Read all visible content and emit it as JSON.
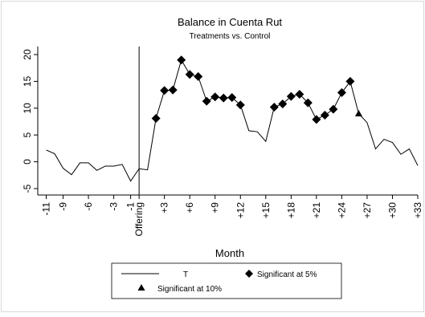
{
  "chart_data": {
    "type": "line",
    "title": "Balance in Cuenta Rut",
    "subtitle": "Treatments vs. Control",
    "xlabel": "Month",
    "ylabel": "",
    "xlim": [
      -12,
      33
    ],
    "ylim": [
      -5,
      20
    ],
    "x_ticks": [
      {
        "value": -11,
        "label": "-11"
      },
      {
        "value": -9,
        "label": "-9"
      },
      {
        "value": -6,
        "label": "-6"
      },
      {
        "value": -3,
        "label": "-3"
      },
      {
        "value": -1,
        "label": "-1"
      },
      {
        "value": 0,
        "label": "Offering"
      },
      {
        "value": 3,
        "label": "+3"
      },
      {
        "value": 6,
        "label": "+6"
      },
      {
        "value": 9,
        "label": "+9"
      },
      {
        "value": 12,
        "label": "+12"
      },
      {
        "value": 15,
        "label": "+15"
      },
      {
        "value": 18,
        "label": "+18"
      },
      {
        "value": 21,
        "label": "+21"
      },
      {
        "value": 24,
        "label": "+24"
      },
      {
        "value": 27,
        "label": "+27"
      },
      {
        "value": 30,
        "label": "+30"
      },
      {
        "value": 33,
        "label": "+33"
      }
    ],
    "y_ticks": [
      {
        "value": -5,
        "label": "-5"
      },
      {
        "value": 0,
        "label": "0"
      },
      {
        "value": 5,
        "label": "5"
      },
      {
        "value": 10,
        "label": "10"
      },
      {
        "value": 15,
        "label": "15"
      },
      {
        "value": 20,
        "label": "20"
      }
    ],
    "grid": false,
    "reference_line_x": 0,
    "series": [
      {
        "name": "T",
        "x": [
          -11,
          -10,
          -9,
          -8,
          -7,
          -6,
          -5,
          -4,
          -3,
          -2,
          -1,
          0,
          1,
          2,
          3,
          4,
          5,
          6,
          7,
          8,
          9,
          10,
          11,
          12,
          13,
          14,
          15,
          16,
          17,
          18,
          19,
          20,
          21,
          22,
          23,
          24,
          25,
          26,
          27,
          28,
          29,
          30,
          31,
          32,
          33
        ],
        "values": [
          2.2,
          1.5,
          -1.2,
          -2.4,
          -0.2,
          -0.2,
          -1.6,
          -0.8,
          -0.8,
          -0.5,
          -3.6,
          -1.3,
          -1.5,
          8.1,
          13.3,
          13.4,
          19.0,
          16.3,
          15.9,
          11.3,
          12.1,
          11.9,
          12.0,
          10.6,
          5.8,
          5.6,
          3.8,
          10.2,
          10.8,
          12.2,
          12.6,
          11.0,
          7.9,
          8.7,
          9.8,
          12.9,
          15.0,
          9.0,
          7.3,
          2.4,
          4.2,
          3.6,
          1.4,
          2.4,
          -0.7
        ]
      }
    ],
    "significant_5pct_x": [
      2,
      3,
      4,
      5,
      6,
      7,
      8,
      9,
      10,
      11,
      12,
      16,
      17,
      18,
      19,
      20,
      21,
      22,
      23,
      24,
      25
    ],
    "significant_10pct_x": [
      26
    ],
    "legend": {
      "placement": "bottom",
      "entries": [
        {
          "label": "T",
          "symbol": "line"
        },
        {
          "label": "Significant at 5%",
          "symbol": "diamond"
        },
        {
          "label": "Significant at 10%",
          "symbol": "triangle"
        }
      ]
    }
  }
}
